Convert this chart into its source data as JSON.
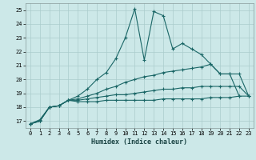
{
  "bg_color": "#cce8e8",
  "grid_color": "#aacccc",
  "line_color": "#1a6666",
  "xlabel": "Humidex (Indice chaleur)",
  "xlim": [
    -0.5,
    23.5
  ],
  "ylim": [
    16.5,
    25.5
  ],
  "yticks": [
    17,
    18,
    19,
    20,
    21,
    22,
    23,
    24,
    25
  ],
  "xticks": [
    0,
    1,
    2,
    3,
    4,
    5,
    6,
    7,
    8,
    9,
    10,
    11,
    12,
    13,
    14,
    15,
    16,
    17,
    18,
    19,
    20,
    21,
    22,
    23
  ],
  "series": [
    {
      "x": [
        0,
        1,
        2,
        3,
        4,
        5,
        6,
        7,
        8,
        9,
        10,
        11,
        12,
        13,
        14,
        15,
        16,
        17,
        18,
        19,
        20,
        21,
        22
      ],
      "y": [
        16.8,
        17.1,
        18.0,
        18.1,
        18.5,
        18.8,
        19.3,
        20.0,
        20.5,
        21.5,
        23.0,
        25.1,
        21.4,
        24.9,
        24.6,
        22.2,
        22.6,
        22.2,
        21.8,
        21.1,
        20.4,
        20.4,
        18.8
      ]
    },
    {
      "x": [
        0,
        1,
        2,
        3,
        4,
        5,
        6,
        7,
        8,
        9,
        10,
        11,
        12,
        13,
        14,
        15,
        16,
        17,
        18,
        19,
        20,
        21,
        22,
        23
      ],
      "y": [
        16.8,
        17.0,
        18.0,
        18.1,
        18.5,
        18.6,
        18.8,
        19.0,
        19.3,
        19.5,
        19.8,
        20.0,
        20.2,
        20.3,
        20.5,
        20.6,
        20.7,
        20.8,
        20.9,
        21.1,
        20.4,
        20.4,
        20.4,
        18.8
      ]
    },
    {
      "x": [
        0,
        1,
        2,
        3,
        4,
        5,
        6,
        7,
        8,
        9,
        10,
        11,
        12,
        13,
        14,
        15,
        16,
        17,
        18,
        19,
        20,
        21,
        22,
        23
      ],
      "y": [
        16.8,
        17.0,
        18.0,
        18.1,
        18.5,
        18.5,
        18.6,
        18.7,
        18.8,
        18.9,
        18.9,
        19.0,
        19.1,
        19.2,
        19.3,
        19.3,
        19.4,
        19.4,
        19.5,
        19.5,
        19.5,
        19.5,
        19.5,
        18.8
      ]
    },
    {
      "x": [
        0,
        1,
        2,
        3,
        4,
        5,
        6,
        7,
        8,
        9,
        10,
        11,
        12,
        13,
        14,
        15,
        16,
        17,
        18,
        19,
        20,
        21,
        22,
        23
      ],
      "y": [
        16.8,
        17.0,
        18.0,
        18.1,
        18.5,
        18.4,
        18.4,
        18.4,
        18.5,
        18.5,
        18.5,
        18.5,
        18.5,
        18.5,
        18.6,
        18.6,
        18.6,
        18.6,
        18.6,
        18.7,
        18.7,
        18.7,
        18.8,
        18.8
      ]
    }
  ]
}
